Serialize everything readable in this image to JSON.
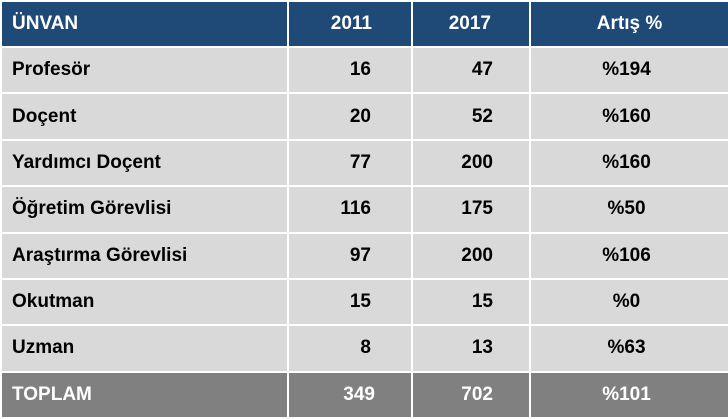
{
  "table": {
    "headers": [
      "ÜNVAN",
      "2011",
      "2017",
      "Artış %"
    ],
    "rows": [
      [
        "Profesör",
        "16",
        "47",
        "%194"
      ],
      [
        "Doçent",
        "20",
        "52",
        "%160"
      ],
      [
        "Yardımcı Doçent",
        "77",
        "200",
        "%160"
      ],
      [
        "Öğretim Görevlisi",
        "116",
        "175",
        "%50"
      ],
      [
        "Araştırma Görevlisi",
        "97",
        "200",
        "%106"
      ],
      [
        "Okutman",
        "15",
        "15",
        "%0"
      ],
      [
        "Uzman",
        "8",
        "13",
        "%63"
      ]
    ],
    "total": [
      "TOPLAM",
      "349",
      "702",
      "%101"
    ]
  },
  "colors": {
    "header_bg": "#1f4a78",
    "row_bg": "#d9d9d9",
    "total_bg": "#808080",
    "grid": "#ffffff"
  }
}
